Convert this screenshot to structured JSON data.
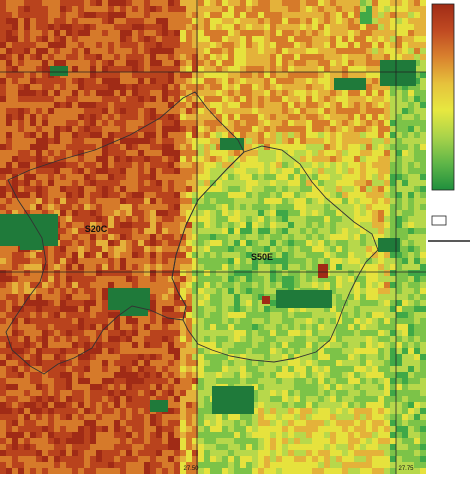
{
  "map": {
    "regions": [
      {
        "label": "S20C"
      },
      {
        "label": "S50E"
      }
    ],
    "grid_labels": {
      "lon_1": "27.50",
      "lon_2": "27.75"
    },
    "colors": {
      "dark_red": "#a02b16",
      "red_brown": "#b9431d",
      "orange": "#d67a2a",
      "yellow_orange": "#e4b23a",
      "yellow": "#e6e23d",
      "yellow_green": "#b7d84b",
      "light_green": "#7cc348",
      "green": "#3fa847",
      "dark_green": "#1f7a3a",
      "boundary": "#333333",
      "gridline": "#222222"
    }
  },
  "colorbar": {
    "colors": [
      "#a02b16",
      "#c04a22",
      "#d9822e",
      "#e6c23c",
      "#e7e840",
      "#a9d34a",
      "#5fb648",
      "#1f8f3d"
    ]
  }
}
